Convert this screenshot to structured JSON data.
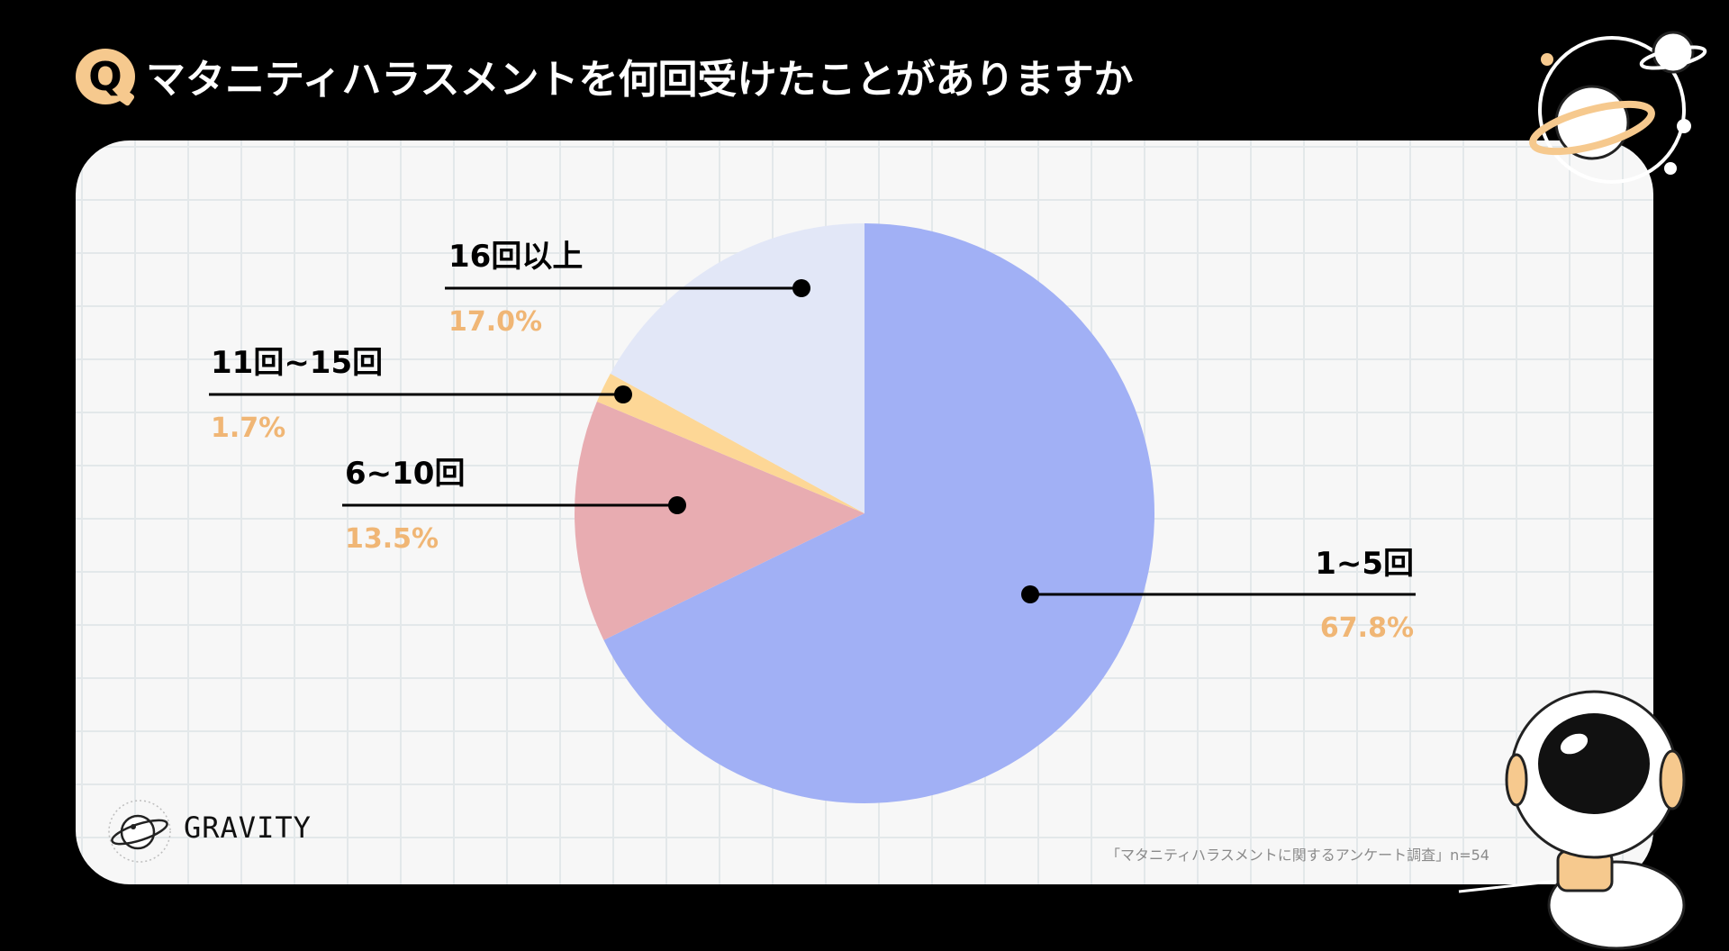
{
  "header": {
    "q_letter": "Q",
    "title": "マタニティハラスメントを何回受けたことがありますか"
  },
  "chart_data": {
    "type": "pie",
    "slices": [
      {
        "label": "1~5回",
        "value": 67.8,
        "value_label": "67.8%",
        "color": "#a1b0f5"
      },
      {
        "label": "6~10回",
        "value": 13.5,
        "value_label": "13.5%",
        "color": "#e8acb1"
      },
      {
        "label": "11回~15回",
        "value": 1.7,
        "value_label": "1.7%",
        "color": "#fdd796"
      },
      {
        "label": "16回以上",
        "value": 17.0,
        "value_label": "17.0%",
        "color": "#e2e7f7"
      }
    ],
    "start": "12 o'clock",
    "direction": "clockwise",
    "label_color": "#000000",
    "value_label_color": "#f0b675"
  },
  "brand": {
    "logo_text": "GRAVITY"
  },
  "footnote": "「マタニティハラスメントに関するアンケート調査」n=54",
  "colors": {
    "background": "#000000",
    "card": "#f7f7f7",
    "accent": "#f6c98e"
  }
}
